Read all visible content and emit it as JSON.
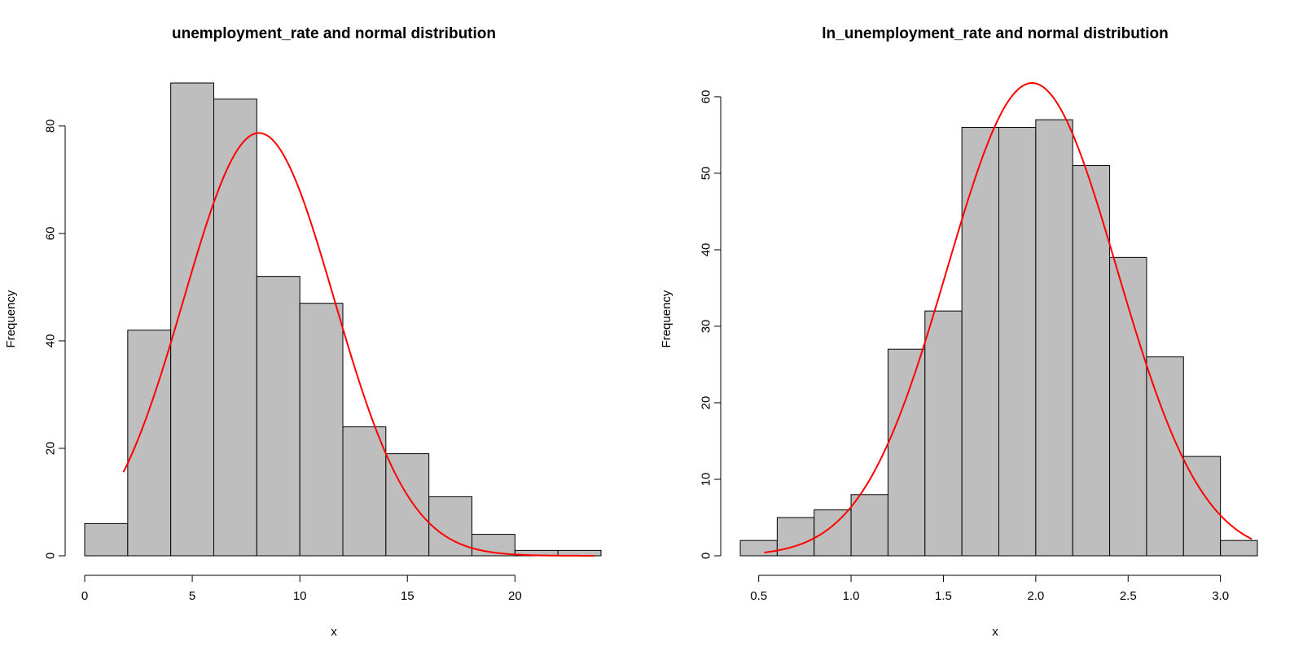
{
  "colors": {
    "bar_fill": "#bebebe",
    "bar_stroke": "#000000",
    "curve": "#ff0000"
  },
  "chart_data": [
    {
      "type": "bar",
      "title": "unemployment_rate and normal distribution",
      "xlabel": "x",
      "ylabel": "Frequency",
      "bin_edges": [
        0,
        2,
        4,
        6,
        8,
        10,
        12,
        14,
        16,
        18,
        20,
        22,
        24
      ],
      "values": [
        6,
        42,
        88,
        85,
        52,
        47,
        24,
        19,
        11,
        4,
        1,
        1
      ],
      "xticks": [
        0,
        5,
        10,
        15,
        20
      ],
      "yticks": [
        0,
        20,
        40,
        60,
        80
      ],
      "xlim": [
        0,
        24
      ],
      "ylim": [
        0,
        88
      ],
      "normal_curve": {
        "mean": 8.1,
        "sd": 3.5,
        "peak": 78.7,
        "x_range": [
          1.8,
          23.7
        ]
      },
      "grid": false,
      "legend": "none"
    },
    {
      "type": "bar",
      "title": "ln_unemployment_rate and normal distribution",
      "xlabel": "x",
      "ylabel": "Frequency",
      "bin_edges": [
        0.4,
        0.6,
        0.8,
        1.0,
        1.2,
        1.4,
        1.6,
        1.8,
        2.0,
        2.2,
        2.4,
        2.6,
        2.8,
        3.0,
        3.2
      ],
      "values": [
        2,
        5,
        6,
        8,
        27,
        32,
        56,
        56,
        57,
        51,
        39,
        26,
        13,
        2
      ],
      "xticks": [
        0.5,
        1.0,
        1.5,
        2.0,
        2.5,
        3.0
      ],
      "xtick_labels": [
        "0.5",
        "1.0",
        "1.5",
        "2.0",
        "2.5",
        "3.0"
      ],
      "yticks": [
        0,
        10,
        20,
        30,
        40,
        50,
        60
      ],
      "xlim": [
        0.4,
        3.2
      ],
      "ylim": [
        0,
        61.8
      ],
      "normal_curve": {
        "mean": 1.98,
        "sd": 0.46,
        "peak": 61.8,
        "x_range": [
          0.53,
          3.17
        ]
      },
      "grid": false,
      "legend": "none"
    }
  ]
}
